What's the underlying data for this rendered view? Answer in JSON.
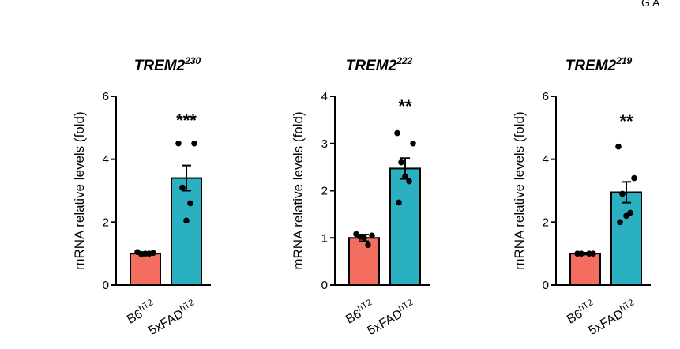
{
  "corner_fragment": "G  A",
  "colors": {
    "B6hT2": "#f46e60",
    "5xFADhT2": "#2bb0c2",
    "axis": "#000000"
  },
  "chart_data": [
    {
      "type": "bar",
      "title_base": "TREM2",
      "title_sup": "230",
      "ylabel": "mRNA relative levels (fold)",
      "ylim": [
        0,
        6
      ],
      "yticks": [
        "0",
        "2",
        "4",
        "6"
      ],
      "categories": [
        {
          "base": "B6",
          "sup": "hT2"
        },
        {
          "base": "5xFAD",
          "sup": "hT2"
        }
      ],
      "values": [
        1.0,
        3.4
      ],
      "sem": [
        0.05,
        0.4
      ],
      "points": [
        [
          1.05,
          1.02,
          0.98,
          1.0,
          1.0
        ],
        [
          4.5,
          4.5,
          3.1,
          2.6,
          2.05
        ]
      ],
      "significance": "***"
    },
    {
      "type": "bar",
      "title_base": "TREM2",
      "title_sup": "222",
      "ylabel": "mRNA relative levels (fold)",
      "ylim": [
        0,
        4
      ],
      "yticks": [
        "0",
        "1",
        "2",
        "3",
        "4"
      ],
      "categories": [
        {
          "base": "B6",
          "sup": "hT2"
        },
        {
          "base": "5xFAD",
          "sup": "hT2"
        }
      ],
      "values": [
        1.0,
        2.47
      ],
      "sem": [
        0.07,
        0.22
      ],
      "points": [
        [
          1.08,
          1.05,
          1.02,
          0.85,
          1.0
        ],
        [
          3.22,
          3.0,
          2.6,
          2.2,
          2.3,
          1.75
        ]
      ],
      "significance": "**"
    },
    {
      "type": "bar",
      "title_base": "TREM2",
      "title_sup": "219",
      "ylabel": "mRNA relative levels (fold)",
      "ylim": [
        0,
        6
      ],
      "yticks": [
        "0",
        "2",
        "4",
        "6"
      ],
      "categories": [
        {
          "base": "B6",
          "sup": "hT2"
        },
        {
          "base": "5xFAD",
          "sup": "hT2"
        }
      ],
      "values": [
        1.0,
        2.95
      ],
      "sem": [
        0.03,
        0.33
      ],
      "points": [
        [
          1.0,
          1.0,
          1.0,
          1.0
        ],
        [
          4.4,
          3.4,
          2.9,
          2.3,
          2.2,
          2.0
        ]
      ],
      "significance": "**"
    }
  ]
}
